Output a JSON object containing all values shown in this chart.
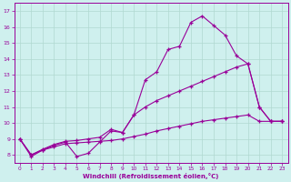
{
  "xlabel": "Windchill (Refroidissement éolien,°C)",
  "xlim": [
    -0.5,
    23.5
  ],
  "ylim": [
    7.5,
    17.5
  ],
  "yticks": [
    8,
    9,
    10,
    11,
    12,
    13,
    14,
    15,
    16,
    17
  ],
  "xticks": [
    0,
    1,
    2,
    3,
    4,
    5,
    6,
    7,
    8,
    9,
    10,
    11,
    12,
    13,
    14,
    15,
    16,
    17,
    18,
    19,
    20,
    21,
    22,
    23
  ],
  "bg_color": "#cff0ee",
  "grid_color": "#b0d8d0",
  "line_color": "#990099",
  "line1_x": [
    0,
    1,
    2,
    3,
    4,
    5,
    6,
    7,
    8,
    9,
    10,
    11,
    12,
    13,
    14,
    15,
    16,
    17,
    18,
    19,
    20,
    21,
    22,
    23
  ],
  "line1_y": [
    9.0,
    7.9,
    8.3,
    8.6,
    8.8,
    7.9,
    8.1,
    8.8,
    9.5,
    9.4,
    10.5,
    12.7,
    13.2,
    14.6,
    14.8,
    16.3,
    16.7,
    16.1,
    15.5,
    14.2,
    13.7,
    11.0,
    10.1,
    10.1
  ],
  "line2_x": [
    0,
    1,
    2,
    3,
    4,
    5,
    6,
    7,
    8,
    9,
    10,
    11,
    12,
    13,
    14,
    15,
    16,
    17,
    18,
    19,
    20,
    21,
    22,
    23
  ],
  "line2_y": [
    9.0,
    8.0,
    8.35,
    8.65,
    8.85,
    8.9,
    9.0,
    9.1,
    9.6,
    9.4,
    10.5,
    11.0,
    11.4,
    11.7,
    12.0,
    12.3,
    12.6,
    12.9,
    13.2,
    13.5,
    13.7,
    11.0,
    10.1,
    10.1
  ],
  "line3_x": [
    0,
    1,
    2,
    3,
    4,
    5,
    6,
    7,
    8,
    9,
    10,
    11,
    12,
    13,
    14,
    15,
    16,
    17,
    18,
    19,
    20,
    21,
    22,
    23
  ],
  "line3_y": [
    9.0,
    8.0,
    8.3,
    8.5,
    8.7,
    8.75,
    8.8,
    8.85,
    8.9,
    9.0,
    9.15,
    9.3,
    9.5,
    9.65,
    9.8,
    9.95,
    10.1,
    10.2,
    10.3,
    10.4,
    10.5,
    10.1,
    10.1,
    10.1
  ]
}
